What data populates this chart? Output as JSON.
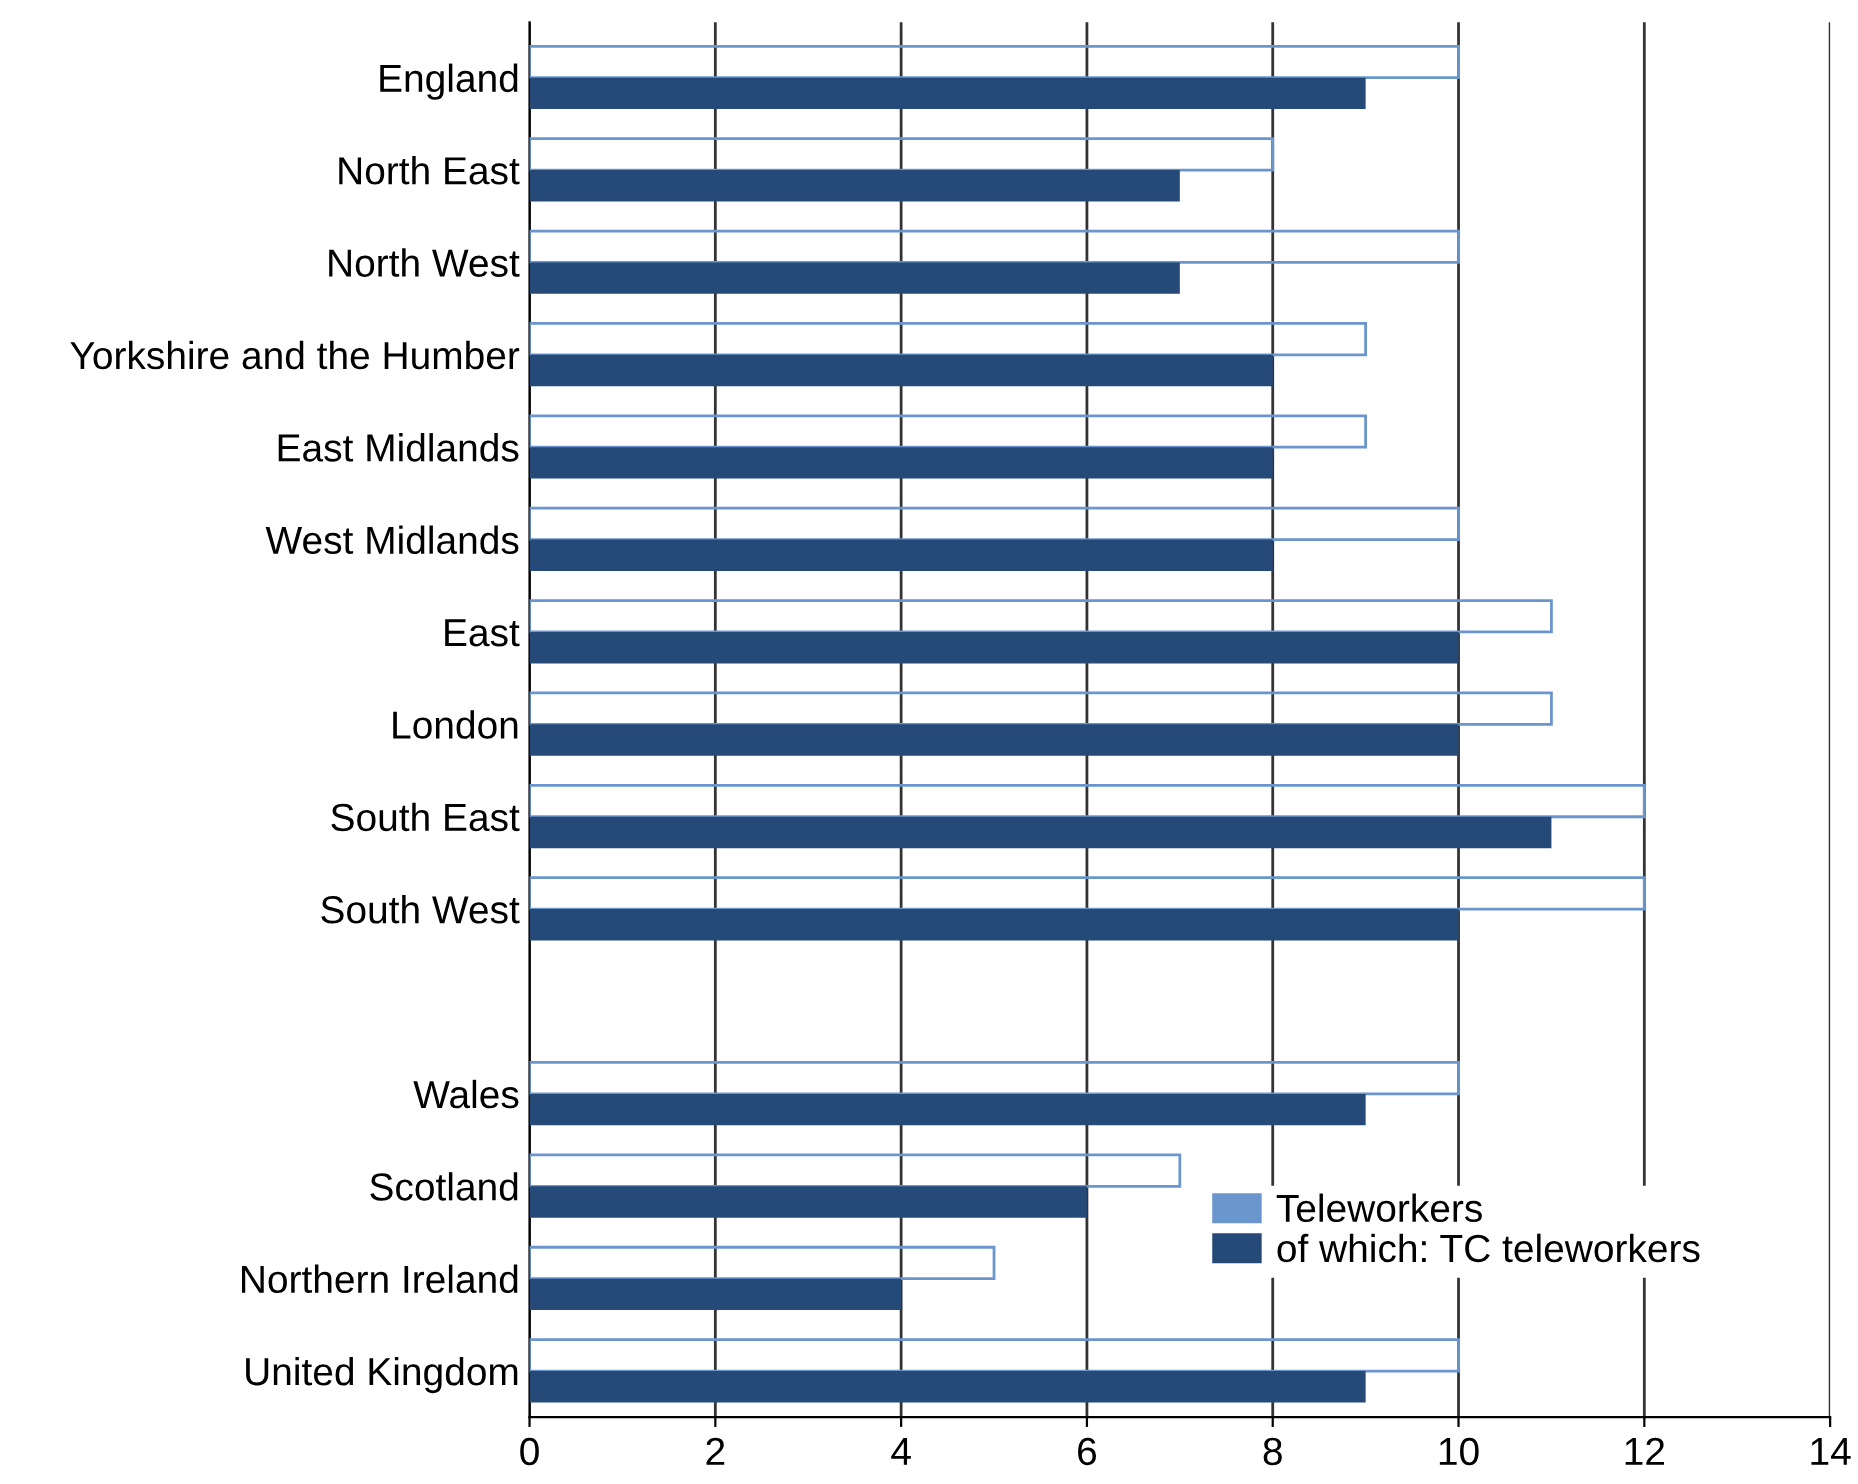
{
  "chart_data": {
    "type": "bar",
    "orientation": "horizontal",
    "categories": [
      "England",
      "North East",
      "North West",
      "Yorkshire and the Humber",
      "East Midlands",
      "West Midlands",
      "East",
      "London",
      "South East",
      "South West",
      null,
      "Wales",
      "Scotland",
      "Northern Ireland",
      "United Kingdom"
    ],
    "series": [
      {
        "name": "Teleworkers",
        "color": "#6a96cd",
        "values": [
          10,
          8,
          10,
          9,
          9,
          10,
          11,
          11,
          12,
          12,
          null,
          10,
          7,
          5,
          10
        ]
      },
      {
        "name": "of which: TC teleworkers",
        "color": "#254a78",
        "values": [
          9,
          7,
          7,
          8,
          8,
          8,
          10,
          10,
          11,
          10,
          null,
          9,
          6,
          4,
          9
        ]
      }
    ],
    "xlim": [
      0,
      14
    ],
    "xticks": [
      0,
      2,
      4,
      6,
      8,
      10,
      12,
      14
    ],
    "grid": "x",
    "legend": "bottom right"
  }
}
